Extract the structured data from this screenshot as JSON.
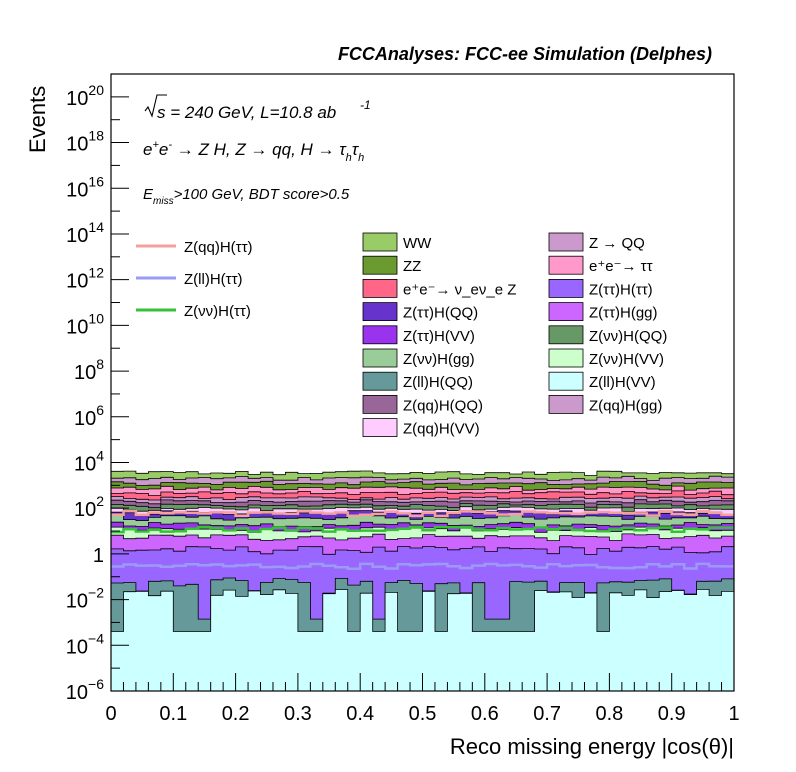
{
  "chart_data": {
    "type": "histogram",
    "title": "FCCAnalyses: FCC-ee Simulation (Delphes)",
    "xlabel": "Reco missing energy |cos(θ)|",
    "ylabel": "Events",
    "xlim": [
      0,
      1
    ],
    "ylim": [
      1e-06,
      1e+21
    ],
    "y_scale": "log",
    "nbins": 50,
    "x_ticks": [
      "0",
      "0.1",
      "0.2",
      "0.3",
      "0.4",
      "0.5",
      "0.6",
      "0.7",
      "0.8",
      "0.9",
      "1"
    ],
    "y_ticks": [
      {
        "base": "10",
        "exp": "−6",
        "value": 1e-06
      },
      {
        "base": "10",
        "exp": "−4",
        "value": 0.0001
      },
      {
        "base": "10",
        "exp": "−2",
        "value": 0.01
      },
      {
        "base": "1",
        "exp": "",
        "value": 1
      },
      {
        "base": "10",
        "exp": "2",
        "value": 100.0
      },
      {
        "base": "10",
        "exp": "4",
        "value": 10000.0
      },
      {
        "base": "10",
        "exp": "6",
        "value": 1000000.0
      },
      {
        "base": "10",
        "exp": "8",
        "value": 100000000.0
      },
      {
        "base": "10",
        "exp": "10",
        "value": 10000000000.0
      },
      {
        "base": "10",
        "exp": "12",
        "value": 1000000000000.0
      },
      {
        "base": "10",
        "exp": "14",
        "value": 100000000000000.0
      },
      {
        "base": "10",
        "exp": "16",
        "value": 1e+16
      },
      {
        "base": "10",
        "exp": "18",
        "value": 1e+18
      },
      {
        "base": "10",
        "exp": "20",
        "value": 1e+20
      }
    ],
    "annotations": {
      "energy_lumi": "√s = 240 GeV, L=10.8 ab⁻¹",
      "process": "e⁺e⁻ → Z H, Z → qq, H → τ_h τ_h",
      "selection": "E_miss>100 GeV, BDT score>0.5"
    },
    "signals": [
      {
        "name": "Z(qq)H(ττ)",
        "color": "#f4a09c",
        "level": 60
      },
      {
        "name": "Z(ll)H(ττ)",
        "color": "#9b9bf5",
        "level": 0.3
      },
      {
        "name": "Z(νν)H(ττ)",
        "color": "#37c037",
        "level": 12
      }
    ],
    "backgrounds": [
      {
        "name": "WW",
        "color": "#99cc66",
        "level": 1500
      },
      {
        "name": "ZZ",
        "color": "#6a9a30",
        "level": 500
      },
      {
        "name": "e⁺e⁻→ ν_eν_e Z",
        "color": "#ff6688",
        "level": 200
      },
      {
        "name": "Z(ττ)H(QQ)",
        "color": "#6633cc",
        "level": 25
      },
      {
        "name": "Z(ττ)H(VV)",
        "color": "#9933ee",
        "level": 8
      },
      {
        "name": "Z(νν)H(gg)",
        "color": "#99cc99",
        "level": 20
      },
      {
        "name": "Z(ll)H(QQ)",
        "color": "#669999",
        "level": 0.05
      },
      {
        "name": "Z(qq)H(QQ)",
        "color": "#996699",
        "level": 60
      },
      {
        "name": "Z(qq)H(VV)",
        "color": "#ffccff",
        "level": 30
      },
      {
        "name": "Z → QQ",
        "color": "#cc99cc",
        "level": 800
      },
      {
        "name": "e⁺e⁻→ ττ",
        "color": "#ff99cc",
        "level": 300
      },
      {
        "name": "Z(ττ)H(ττ)",
        "color": "#9966ff",
        "level": 1.5
      },
      {
        "name": "Z(ττ)H(gg)",
        "color": "#cc66ff",
        "level": 4
      },
      {
        "name": "Z(νν)H(QQ)",
        "color": "#669966",
        "level": 40
      },
      {
        "name": "Z(νν)H(VV)",
        "color": "#ccffcc",
        "level": 6
      },
      {
        "name": "Z(ll)H(VV)",
        "color": "#ccffff",
        "level": 0.02
      },
      {
        "name": "Z(qq)H(gg)",
        "color": "#cc99cc",
        "level": 80
      }
    ]
  }
}
